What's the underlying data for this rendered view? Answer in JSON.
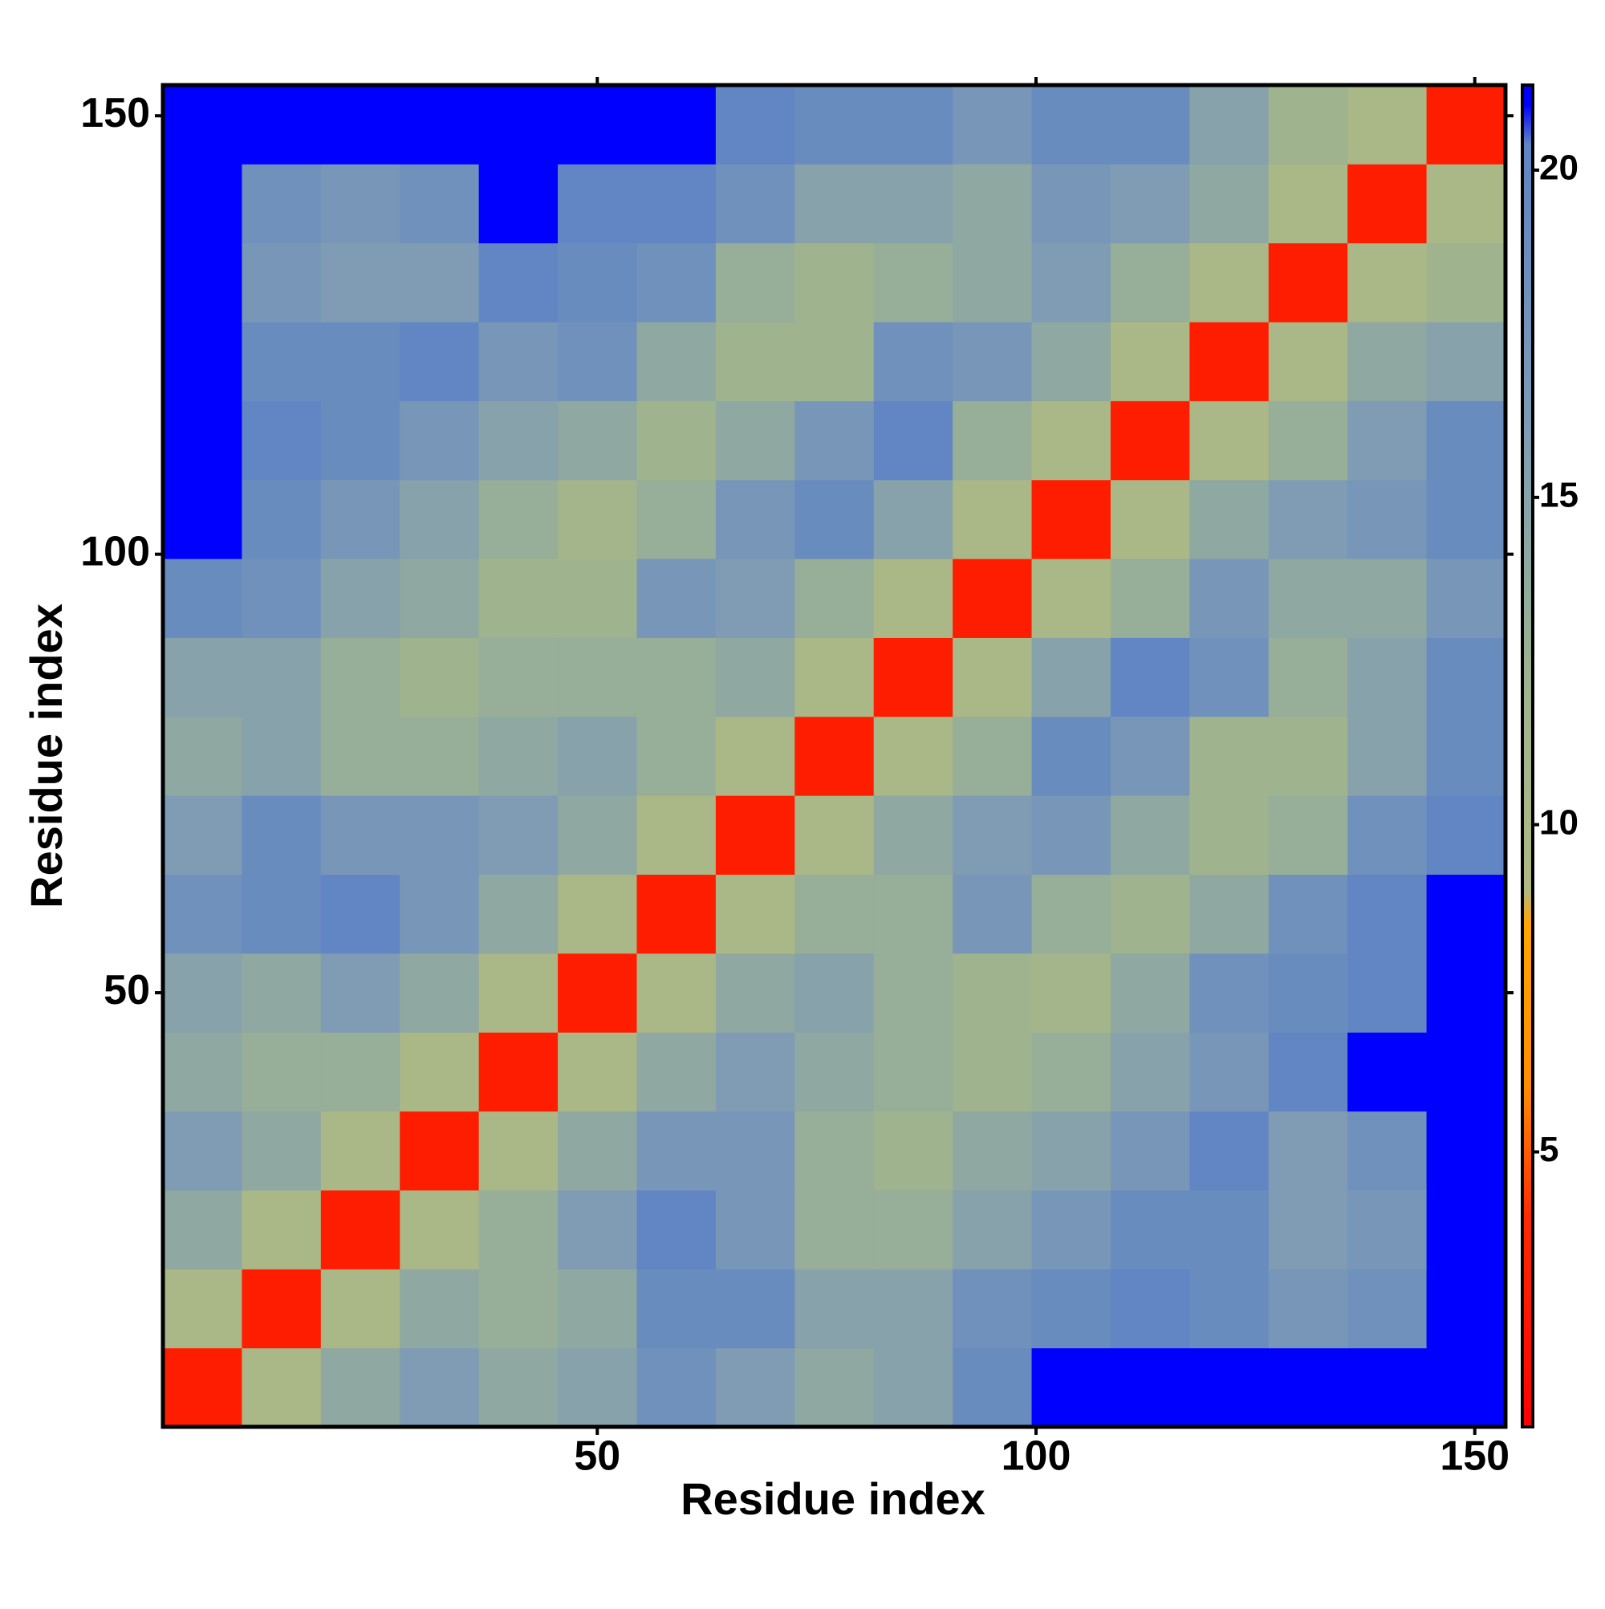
{
  "chart_data": {
    "type": "heatmap",
    "x_label": "Residue index",
    "y_label": "Residue index",
    "x_edges": [
      0.5,
      9.5,
      18.5,
      27.5,
      36.5,
      45.5,
      54.5,
      63.5,
      72.5,
      81.5,
      90.5,
      99.5,
      108.5,
      117.5,
      126.5,
      135.5,
      144.5,
      153.5
    ],
    "y_edges": [
      0.5,
      9.5,
      18.5,
      27.5,
      36.5,
      45.5,
      54.5,
      63.5,
      72.5,
      81.5,
      90.5,
      99.5,
      108.5,
      117.5,
      126.5,
      135.5,
      144.5,
      153.5
    ],
    "values": [
      [
        3,
        10,
        14,
        16,
        14,
        15,
        18,
        16,
        14,
        15,
        19,
        21,
        21,
        21,
        21,
        21,
        21
      ],
      [
        10,
        3,
        10,
        14,
        13,
        14,
        19,
        19,
        15,
        15,
        18,
        19,
        20,
        19,
        17,
        18,
        21
      ],
      [
        14,
        10,
        3,
        10,
        13,
        16,
        20,
        17,
        13,
        13,
        15,
        17,
        19,
        19,
        16,
        17,
        21
      ],
      [
        16,
        14,
        10,
        3,
        10,
        14,
        17,
        17,
        13,
        12,
        14,
        15,
        17,
        20,
        16,
        18,
        21
      ],
      [
        14,
        13,
        13,
        10,
        3,
        10,
        14,
        16,
        14,
        13,
        12,
        13,
        15,
        17,
        20,
        21,
        21
      ],
      [
        15,
        14,
        16,
        14,
        10,
        3,
        10,
        14,
        15,
        13,
        12,
        11,
        14,
        18,
        19,
        20,
        21
      ],
      [
        18,
        19,
        20,
        17,
        14,
        10,
        3,
        10,
        13,
        13,
        17,
        13,
        12,
        14,
        18,
        20,
        21
      ],
      [
        16,
        19,
        17,
        17,
        16,
        14,
        10,
        3,
        10,
        14,
        16,
        17,
        14,
        12,
        13,
        18,
        20
      ],
      [
        14,
        15,
        13,
        13,
        14,
        15,
        13,
        10,
        3,
        10,
        13,
        19,
        17,
        12,
        12,
        15,
        19
      ],
      [
        15,
        15,
        13,
        12,
        13,
        13,
        13,
        14,
        10,
        3,
        10,
        15,
        20,
        18,
        13,
        15,
        19
      ],
      [
        19,
        18,
        15,
        14,
        12,
        12,
        17,
        16,
        13,
        10,
        3,
        10,
        13,
        17,
        14,
        14,
        17
      ],
      [
        21,
        19,
        17,
        15,
        13,
        11,
        13,
        17,
        19,
        15,
        10,
        3,
        10,
        14,
        16,
        17,
        19
      ],
      [
        21,
        20,
        19,
        17,
        15,
        14,
        12,
        14,
        17,
        20,
        13,
        10,
        3,
        10,
        13,
        16,
        19
      ],
      [
        21,
        19,
        19,
        20,
        17,
        18,
        14,
        12,
        12,
        18,
        17,
        14,
        10,
        3,
        10,
        14,
        15
      ],
      [
        21,
        17,
        16,
        16,
        20,
        19,
        18,
        13,
        12,
        13,
        14,
        16,
        13,
        10,
        3,
        10,
        12
      ],
      [
        21,
        18,
        17,
        18,
        21,
        20,
        20,
        18,
        15,
        15,
        14,
        17,
        16,
        14,
        10,
        3,
        10
      ],
      [
        21,
        21,
        21,
        21,
        21,
        21,
        21,
        20,
        19,
        19,
        17,
        19,
        19,
        15,
        12,
        10,
        3
      ]
    ],
    "xlim": [
      0.5,
      153.5
    ],
    "ylim": [
      0.5,
      153.5
    ],
    "xticks": [
      50,
      100,
      150
    ],
    "yticks": [
      50,
      100,
      150
    ],
    "clim": [
      0.8,
      21.3
    ],
    "cticks": [
      5,
      10,
      15,
      20
    ],
    "colorscale": [
      [
        0.8,
        "#ff0000"
      ],
      [
        4,
        "#ff2a00"
      ],
      [
        6,
        "#ff8c00"
      ],
      [
        8.5,
        "#ffa500"
      ],
      [
        9,
        "#b0b884"
      ],
      [
        12,
        "#9fb48e"
      ],
      [
        16,
        "#7f9cb4"
      ],
      [
        20.4,
        "#5f84c4"
      ],
      [
        21,
        "#0000ff"
      ]
    ]
  }
}
